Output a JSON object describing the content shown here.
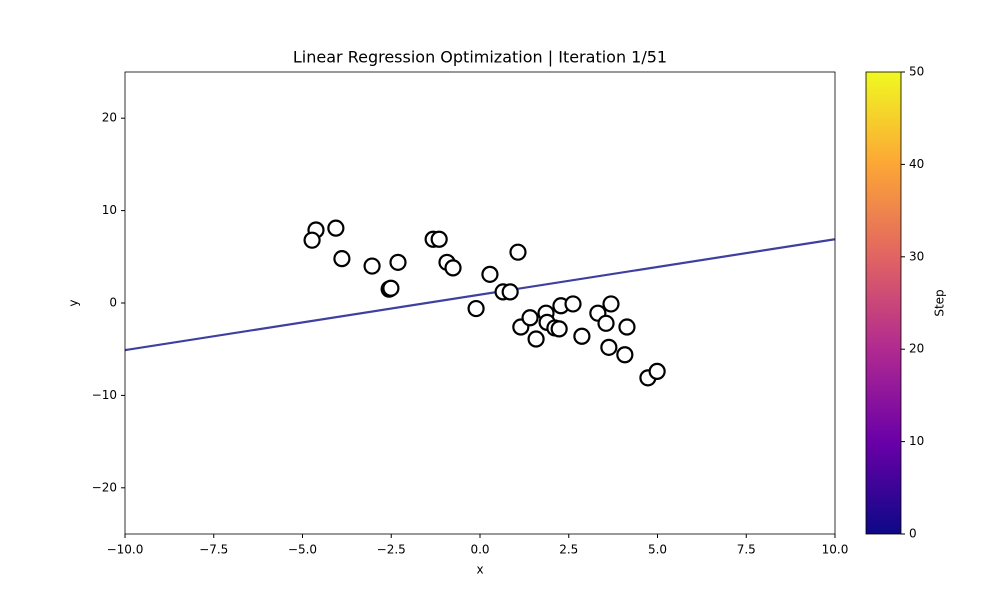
{
  "chart_data": {
    "type": "scatter",
    "title": "Linear Regression Optimization | Iteration 1/51",
    "x_label": "x",
    "y_label": "y",
    "x": [
      -4.62,
      -4.73,
      -4.06,
      -3.89,
      -3.04,
      -2.31,
      -2.56,
      -2.51,
      -1.32,
      -1.15,
      -0.93,
      -0.76,
      -0.11,
      0.28,
      0.65,
      0.85,
      1.07,
      1.15,
      1.41,
      1.58,
      1.86,
      1.89,
      2.11,
      2.23,
      2.28,
      2.62,
      2.87,
      3.32,
      3.55,
      3.63,
      3.69,
      4.08,
      4.14,
      4.73,
      4.99
    ],
    "y": [
      7.9,
      6.8,
      8.1,
      4.8,
      4.0,
      4.4,
      1.5,
      1.6,
      6.9,
      6.9,
      4.4,
      3.8,
      -0.6,
      3.1,
      1.2,
      1.2,
      5.5,
      -2.6,
      -1.6,
      -3.9,
      -1.1,
      -2.1,
      -2.7,
      -2.8,
      -0.3,
      -0.1,
      -3.6,
      -1.1,
      -2.2,
      -4.8,
      -0.1,
      -5.6,
      -2.6,
      -8.1,
      -7.4
    ],
    "marker_fill": "#ffffff",
    "marker_edge": "#000000",
    "line": {
      "x": [
        -10,
        10
      ],
      "y": [
        -5.1,
        6.9
      ],
      "color": "#3f3f9f"
    },
    "xlim": [
      -10,
      10
    ],
    "xticks": [
      {
        "value": -10,
        "label": "−10.0"
      },
      {
        "value": -7.5,
        "label": "−7.5"
      },
      {
        "value": -5,
        "label": "−5.0"
      },
      {
        "value": -2.5,
        "label": "−2.5"
      },
      {
        "value": 0,
        "label": "0.0"
      },
      {
        "value": 2.5,
        "label": "2.5"
      },
      {
        "value": 5,
        "label": "5.0"
      },
      {
        "value": 7.5,
        "label": "7.5"
      },
      {
        "value": 10,
        "label": "10.0"
      }
    ],
    "ylim": [
      -25,
      25
    ],
    "yticks": [
      {
        "value": -20,
        "label": "−20"
      },
      {
        "value": -10,
        "label": "−10"
      },
      0,
      10,
      20
    ],
    "grid": false,
    "colorbar": {
      "label": "Step",
      "lim": [
        0,
        50
      ],
      "ticks": [
        0,
        10,
        20,
        30,
        40,
        50
      ]
    }
  }
}
